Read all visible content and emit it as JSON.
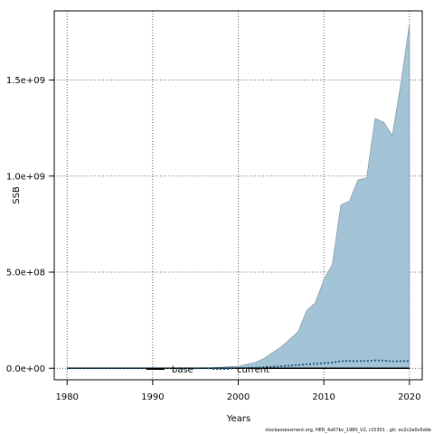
{
  "chart_data": {
    "type": "area",
    "title": "",
    "xlabel": "Years",
    "ylabel": "SSB",
    "xlim": [
      1978.5,
      2021.5
    ],
    "ylim": [
      -60000000.0,
      1860000000.0
    ],
    "x_ticks": [
      1980,
      1990,
      2000,
      2010,
      2020
    ],
    "x_tick_labels": [
      "1980",
      "1990",
      "2000",
      "2010",
      "2020"
    ],
    "y_ticks": [
      0,
      500000000,
      1000000000,
      1500000000
    ],
    "y_tick_labels": [
      "0.0e+00",
      "5.0e+08",
      "1.0e+09",
      "1.5e+09"
    ],
    "grid": true,
    "legend_position": "bottom-center",
    "fill_color": "#a3c4d6",
    "fill_outline_color": "#8a9aa5",
    "current_line_color": "#1a4f6e",
    "series": [
      {
        "name": "base",
        "style": "area",
        "x": [
          1980,
          1981,
          1982,
          1983,
          1984,
          1985,
          1986,
          1987,
          1988,
          1989,
          1990,
          1991,
          1992,
          1993,
          1994,
          1995,
          1996,
          1997,
          1998,
          1999,
          2000,
          2001,
          2002,
          2003,
          2004,
          2005,
          2006,
          2007,
          2008,
          2009,
          2010,
          2011,
          2012,
          2013,
          2014,
          2015,
          2016,
          2017,
          2018,
          2019,
          2020
        ],
        "upper": [
          0,
          0,
          0,
          0,
          0,
          0,
          0,
          0,
          0,
          0,
          0,
          0,
          0,
          0,
          0,
          0,
          2000000,
          3000000,
          5000000,
          8000000,
          10000000,
          20000000,
          30000000,
          50000000,
          80000000,
          110000000,
          150000000,
          190000000,
          300000000,
          340000000,
          460000000,
          540000000,
          850000000,
          870000000,
          980000000,
          990000000,
          1300000000,
          1280000000,
          1210000000,
          1480000000,
          1790000000
        ],
        "lower": [
          0,
          0,
          0,
          0,
          0,
          0,
          0,
          0,
          0,
          0,
          0,
          0,
          0,
          0,
          0,
          0,
          0,
          0,
          0,
          0,
          0,
          0,
          0,
          0,
          0,
          0,
          0,
          0,
          0,
          0,
          0,
          0,
          0,
          0,
          0,
          0,
          0,
          0,
          0,
          0,
          0
        ]
      },
      {
        "name": "current",
        "style": "dotted-line",
        "x": [
          1980,
          1981,
          1982,
          1983,
          1984,
          1985,
          1986,
          1987,
          1988,
          1989,
          1990,
          1991,
          1992,
          1993,
          1994,
          1995,
          1996,
          1997,
          1998,
          1999,
          2000,
          2001,
          2002,
          2003,
          2004,
          2005,
          2006,
          2007,
          2008,
          2009,
          2010,
          2011,
          2012,
          2013,
          2014,
          2015,
          2016,
          2017,
          2018,
          2019,
          2020
        ],
        "values": [
          0,
          0,
          0,
          0,
          0,
          0,
          0,
          0,
          0,
          0,
          0,
          0,
          0,
          0,
          0,
          0,
          0,
          0,
          0,
          0,
          1000000,
          2000000,
          3000000,
          5000000,
          8000000,
          10000000,
          13000000,
          16000000,
          20000000,
          23000000,
          26000000,
          30000000,
          37000000,
          38000000,
          37000000,
          38000000,
          41000000,
          40000000,
          36000000,
          37000000,
          38000000
        ]
      }
    ],
    "legend": [
      "base",
      "current"
    ]
  },
  "footnote": "stockassessment.org,  HER_4a57bc_1980_V2,  r15301 ,  git:  ec2c2a0c6dde"
}
